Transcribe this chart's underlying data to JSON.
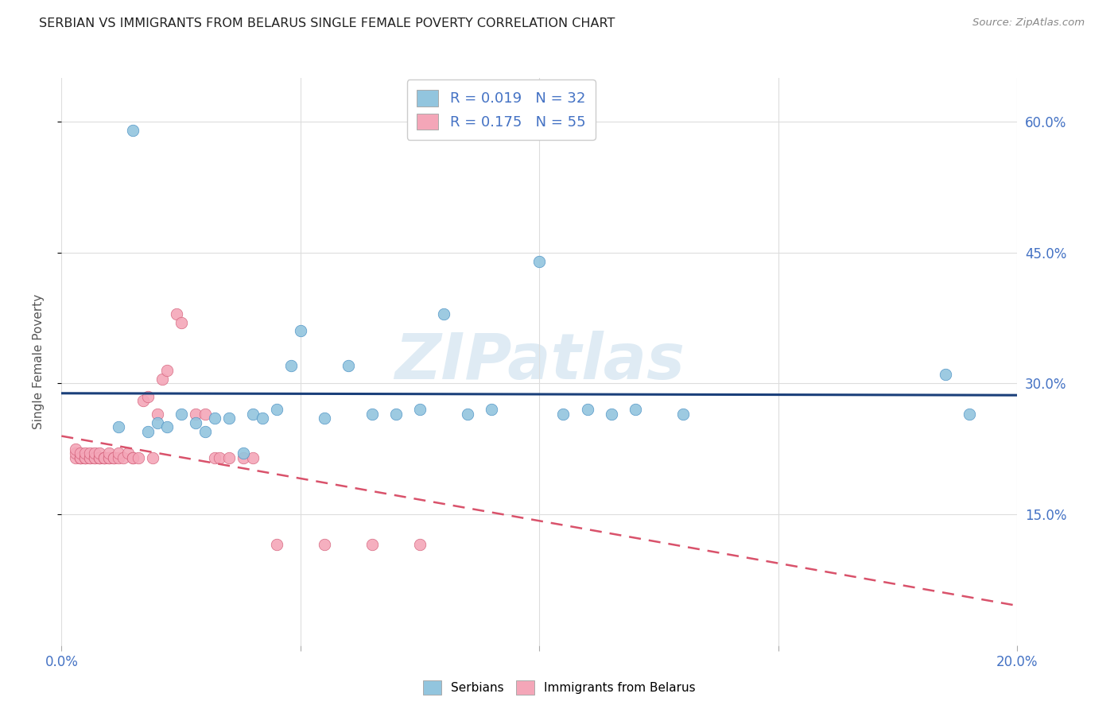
{
  "title": "SERBIAN VS IMMIGRANTS FROM BELARUS SINGLE FEMALE POVERTY CORRELATION CHART",
  "source": "Source: ZipAtlas.com",
  "ylabel": "Single Female Poverty",
  "watermark": "ZIPatlas",
  "blue_color": "#92c5de",
  "pink_color": "#f4a6b8",
  "line_blue": "#1a3f7a",
  "line_pink": "#d9526b",
  "axis_label_color": "#4472c4",
  "title_color": "#222222",
  "xlim": [
    0.0,
    0.2
  ],
  "ylim": [
    0.0,
    0.65
  ],
  "legend_label1": "R = 0.019   N = 32",
  "legend_label2": "R = 0.175   N = 55",
  "serbians_x": [
    0.012,
    0.015,
    0.018,
    0.02,
    0.022,
    0.025,
    0.028,
    0.03,
    0.032,
    0.035,
    0.038,
    0.04,
    0.042,
    0.045,
    0.048,
    0.05,
    0.055,
    0.06,
    0.065,
    0.07,
    0.075,
    0.08,
    0.085,
    0.09,
    0.1,
    0.105,
    0.11,
    0.115,
    0.12,
    0.13,
    0.185,
    0.19
  ],
  "serbians_y": [
    0.25,
    0.59,
    0.245,
    0.255,
    0.25,
    0.265,
    0.255,
    0.245,
    0.26,
    0.26,
    0.22,
    0.265,
    0.26,
    0.27,
    0.32,
    0.36,
    0.26,
    0.32,
    0.265,
    0.265,
    0.27,
    0.38,
    0.265,
    0.27,
    0.44,
    0.265,
    0.27,
    0.265,
    0.27,
    0.265,
    0.31,
    0.265
  ],
  "belarus_x": [
    0.003,
    0.003,
    0.003,
    0.004,
    0.004,
    0.004,
    0.004,
    0.005,
    0.005,
    0.005,
    0.005,
    0.006,
    0.006,
    0.006,
    0.007,
    0.007,
    0.007,
    0.008,
    0.008,
    0.008,
    0.008,
    0.009,
    0.009,
    0.009,
    0.01,
    0.01,
    0.01,
    0.011,
    0.011,
    0.012,
    0.012,
    0.013,
    0.014,
    0.015,
    0.015,
    0.016,
    0.017,
    0.018,
    0.019,
    0.02,
    0.021,
    0.022,
    0.024,
    0.025,
    0.028,
    0.03,
    0.032,
    0.033,
    0.035,
    0.038,
    0.04,
    0.045,
    0.055,
    0.065,
    0.075
  ],
  "belarus_y": [
    0.215,
    0.22,
    0.225,
    0.215,
    0.215,
    0.215,
    0.22,
    0.215,
    0.215,
    0.215,
    0.22,
    0.215,
    0.215,
    0.22,
    0.215,
    0.215,
    0.22,
    0.215,
    0.215,
    0.215,
    0.22,
    0.215,
    0.215,
    0.215,
    0.215,
    0.215,
    0.22,
    0.215,
    0.215,
    0.215,
    0.22,
    0.215,
    0.22,
    0.215,
    0.215,
    0.215,
    0.28,
    0.285,
    0.215,
    0.265,
    0.305,
    0.315,
    0.38,
    0.37,
    0.265,
    0.265,
    0.215,
    0.215,
    0.215,
    0.215,
    0.215,
    0.115,
    0.115,
    0.115,
    0.115
  ]
}
